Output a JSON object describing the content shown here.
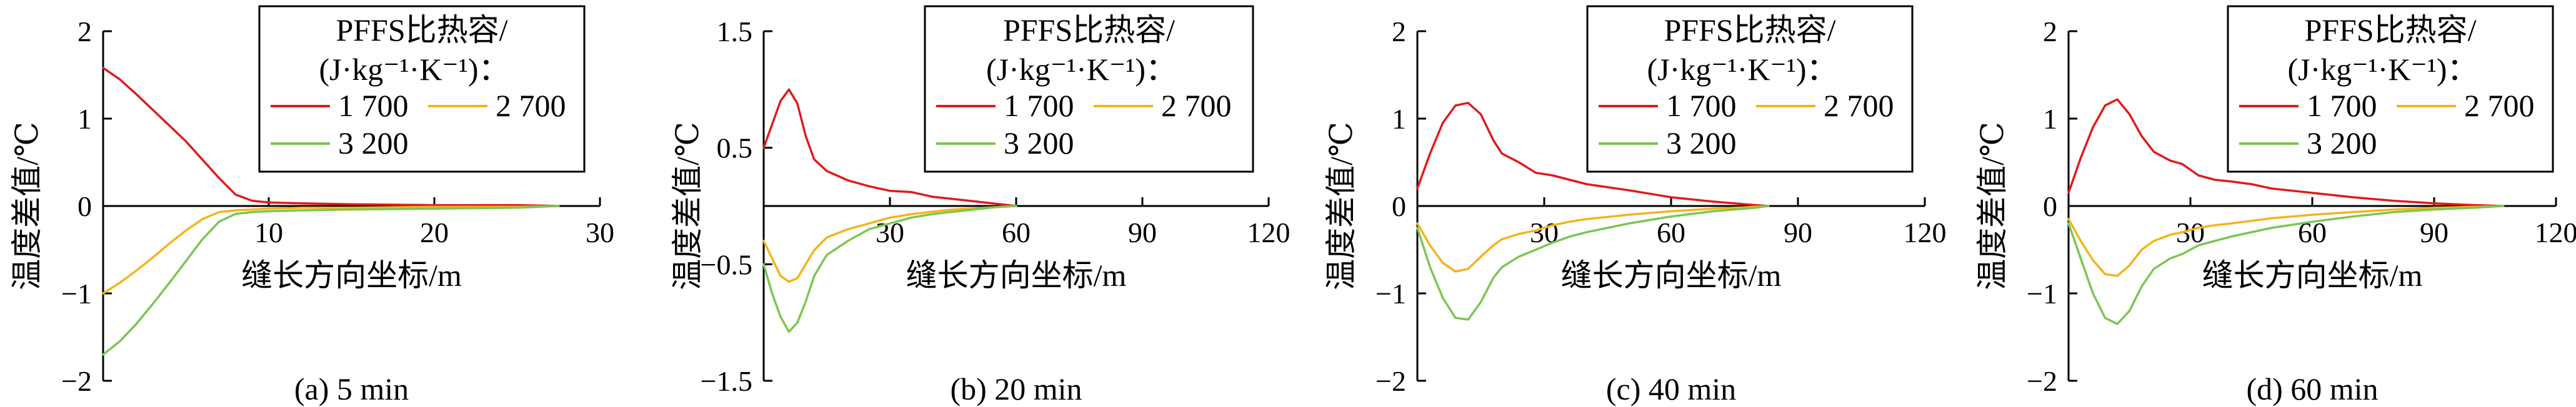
{
  "colors": {
    "1700": "#e01b1b",
    "2700": "#f5b31a",
    "3200": "#7cc653"
  },
  "chart_data": [
    {
      "type": "line",
      "caption": "(a) 5 min",
      "xlabel": "缝长方向坐标/m",
      "ylabel": "温度差值/℃",
      "xlim": [
        0,
        30
      ],
      "ylim": [
        -2,
        2
      ],
      "xticks": [
        "10",
        "20",
        "30"
      ],
      "xtick_values": [
        10,
        20,
        30
      ],
      "yticks": [
        "−2",
        "−1",
        "0",
        "1",
        "2"
      ],
      "ytick_values": [
        -2,
        -1,
        0,
        1,
        2
      ],
      "legend": {
        "title_line1": "PFFS比热容/",
        "title_line2": "(J·kg⁻¹·K⁻¹)：",
        "labels": [
          "1 700",
          "2 700",
          "3 200"
        ]
      },
      "series": [
        {
          "name": "1 700",
          "color_key": "1700",
          "x": [
            0,
            1,
            2,
            3,
            4,
            5,
            6,
            7,
            8,
            9,
            10,
            12,
            15,
            20,
            25,
            27.5
          ],
          "y": [
            1.58,
            1.45,
            1.28,
            1.1,
            0.92,
            0.74,
            0.53,
            0.32,
            0.13,
            0.06,
            0.04,
            0.03,
            0.02,
            0.01,
            0.01,
            0
          ]
        },
        {
          "name": "2 700",
          "color_key": "2700",
          "x": [
            0,
            1,
            2,
            3,
            4,
            5,
            6,
            7,
            8,
            9,
            10,
            12,
            15,
            20,
            25,
            27.5
          ],
          "y": [
            -1.0,
            -0.88,
            -0.74,
            -0.59,
            -0.43,
            -0.28,
            -0.15,
            -0.07,
            -0.05,
            -0.04,
            -0.03,
            -0.02,
            -0.02,
            -0.01,
            -0.01,
            0
          ]
        },
        {
          "name": "3 200",
          "color_key": "3200",
          "x": [
            0,
            1,
            2,
            3,
            4,
            5,
            6,
            7,
            8,
            9,
            10,
            12,
            15,
            20,
            25,
            27.5
          ],
          "y": [
            -1.7,
            -1.55,
            -1.35,
            -1.12,
            -0.88,
            -0.63,
            -0.38,
            -0.18,
            -0.09,
            -0.07,
            -0.06,
            -0.05,
            -0.04,
            -0.03,
            -0.02,
            0
          ]
        }
      ]
    },
    {
      "type": "line",
      "caption": "(b) 20 min",
      "xlabel": "缝长方向坐标/m",
      "ylabel": "温度差值/℃",
      "xlim": [
        0,
        120
      ],
      "ylim": [
        -1.5,
        1.5
      ],
      "xticks": [
        "30",
        "60",
        "90",
        "120"
      ],
      "xtick_values": [
        30,
        60,
        90,
        120
      ],
      "yticks": [
        "−1.5",
        "−0.5",
        "0.5",
        "1.5"
      ],
      "ytick_values": [
        -1.5,
        -0.5,
        0.5,
        1.5
      ],
      "legend": {
        "title_line1": "PFFS比热容/",
        "title_line2": "(J·kg⁻¹·K⁻¹)：",
        "labels": [
          "1 700",
          "2 700",
          "3 200"
        ]
      },
      "series": [
        {
          "name": "1 700",
          "color_key": "1700",
          "x": [
            0,
            2,
            4,
            6,
            8,
            10,
            12,
            15,
            20,
            25,
            30,
            35,
            40,
            45,
            50,
            55,
            60
          ],
          "y": [
            0.5,
            0.7,
            0.9,
            1.0,
            0.88,
            0.6,
            0.4,
            0.3,
            0.22,
            0.17,
            0.13,
            0.12,
            0.08,
            0.06,
            0.04,
            0.02,
            0
          ]
        },
        {
          "name": "2 700",
          "color_key": "2700",
          "x": [
            0,
            2,
            4,
            6,
            8,
            10,
            12,
            15,
            20,
            25,
            30,
            35,
            40,
            45,
            50,
            55,
            60
          ],
          "y": [
            -0.3,
            -0.45,
            -0.6,
            -0.65,
            -0.62,
            -0.5,
            -0.38,
            -0.27,
            -0.2,
            -0.15,
            -0.1,
            -0.07,
            -0.05,
            -0.03,
            -0.02,
            -0.01,
            0
          ]
        },
        {
          "name": "3 200",
          "color_key": "3200",
          "x": [
            0,
            2,
            4,
            6,
            8,
            10,
            12,
            15,
            20,
            25,
            30,
            35,
            40,
            45,
            50,
            55,
            60
          ],
          "y": [
            -0.5,
            -0.75,
            -0.95,
            -1.08,
            -1.0,
            -0.82,
            -0.6,
            -0.42,
            -0.3,
            -0.2,
            -0.15,
            -0.1,
            -0.07,
            -0.05,
            -0.03,
            -0.01,
            0
          ]
        }
      ]
    },
    {
      "type": "line",
      "caption": "(c) 40 min",
      "xlabel": "缝长方向坐标/m",
      "ylabel": "温度差值/℃",
      "xlim": [
        0,
        120
      ],
      "ylim": [
        -2,
        2
      ],
      "xticks": [
        "30",
        "60",
        "90",
        "120"
      ],
      "xtick_values": [
        30,
        60,
        90,
        120
      ],
      "yticks": [
        "−2",
        "−1",
        "0",
        "1",
        "2"
      ],
      "ytick_values": [
        -2,
        -1,
        0,
        1,
        2
      ],
      "legend": {
        "title_line1": "PFFS比热容/",
        "title_line2": "(J·kg⁻¹·K⁻¹)：",
        "labels": [
          "1 700",
          "2 700",
          "3 200"
        ]
      },
      "series": [
        {
          "name": "1 700",
          "color_key": "1700",
          "x": [
            0,
            3,
            6,
            9,
            12,
            15,
            18,
            20,
            24,
            28,
            32,
            36,
            40,
            50,
            60,
            70,
            80,
            83
          ],
          "y": [
            0.2,
            0.6,
            0.95,
            1.15,
            1.18,
            1.05,
            0.75,
            0.6,
            0.5,
            0.38,
            0.35,
            0.3,
            0.25,
            0.18,
            0.1,
            0.05,
            0.01,
            0
          ]
        },
        {
          "name": "2 700",
          "color_key": "2700",
          "x": [
            0,
            3,
            6,
            9,
            12,
            15,
            18,
            20,
            24,
            28,
            32,
            36,
            40,
            50,
            60,
            70,
            80,
            83
          ],
          "y": [
            -0.2,
            -0.45,
            -0.65,
            -0.75,
            -0.72,
            -0.58,
            -0.45,
            -0.38,
            -0.32,
            -0.28,
            -0.22,
            -0.18,
            -0.15,
            -0.1,
            -0.06,
            -0.03,
            -0.01,
            0
          ]
        },
        {
          "name": "3 200",
          "color_key": "3200",
          "x": [
            0,
            3,
            6,
            9,
            12,
            15,
            18,
            20,
            24,
            28,
            32,
            36,
            40,
            50,
            60,
            70,
            80,
            83
          ],
          "y": [
            -0.25,
            -0.7,
            -1.05,
            -1.28,
            -1.3,
            -1.1,
            -0.82,
            -0.7,
            -0.58,
            -0.5,
            -0.42,
            -0.35,
            -0.3,
            -0.2,
            -0.12,
            -0.06,
            -0.02,
            0
          ]
        }
      ]
    },
    {
      "type": "line",
      "caption": "(d) 60 min",
      "xlabel": "缝长方向坐标/m",
      "ylabel": "温度差值/℃",
      "xlim": [
        0,
        120
      ],
      "ylim": [
        -2,
        2
      ],
      "xticks": [
        "30",
        "60",
        "90",
        "120"
      ],
      "xtick_values": [
        30,
        60,
        90,
        120
      ],
      "yticks": [
        "−2",
        "−1",
        "0",
        "1",
        "2"
      ],
      "ytick_values": [
        -2,
        -1,
        0,
        1,
        2
      ],
      "legend": {
        "title_line1": "PFFS比热容/",
        "title_line2": "(J·kg⁻¹·K⁻¹)：",
        "labels": [
          "1 700",
          "2 700",
          "3 200"
        ]
      },
      "series": [
        {
          "name": "1 700",
          "color_key": "1700",
          "x": [
            0,
            3,
            6,
            9,
            12,
            15,
            18,
            21,
            25,
            28,
            32,
            36,
            40,
            45,
            50,
            60,
            70,
            80,
            90,
            100,
            107
          ],
          "y": [
            0.15,
            0.55,
            0.9,
            1.15,
            1.22,
            1.05,
            0.8,
            0.62,
            0.52,
            0.48,
            0.35,
            0.3,
            0.28,
            0.25,
            0.2,
            0.15,
            0.1,
            0.06,
            0.03,
            0.01,
            0
          ]
        },
        {
          "name": "2 700",
          "color_key": "2700",
          "x": [
            0,
            3,
            6,
            9,
            12,
            15,
            18,
            21,
            25,
            28,
            32,
            36,
            40,
            45,
            50,
            60,
            70,
            80,
            90,
            100,
            107
          ],
          "y": [
            -0.15,
            -0.4,
            -0.62,
            -0.78,
            -0.8,
            -0.68,
            -0.5,
            -0.4,
            -0.33,
            -0.3,
            -0.25,
            -0.22,
            -0.2,
            -0.17,
            -0.14,
            -0.1,
            -0.07,
            -0.04,
            -0.02,
            -0.01,
            0
          ]
        },
        {
          "name": "3 200",
          "color_key": "3200",
          "x": [
            0,
            3,
            6,
            9,
            12,
            15,
            18,
            21,
            25,
            28,
            32,
            36,
            40,
            45,
            50,
            60,
            70,
            80,
            90,
            100,
            107
          ],
          "y": [
            -0.2,
            -0.6,
            -1.0,
            -1.28,
            -1.35,
            -1.2,
            -0.92,
            -0.72,
            -0.6,
            -0.55,
            -0.45,
            -0.4,
            -0.35,
            -0.3,
            -0.25,
            -0.18,
            -0.12,
            -0.07,
            -0.04,
            -0.02,
            0
          ]
        }
      ]
    }
  ]
}
